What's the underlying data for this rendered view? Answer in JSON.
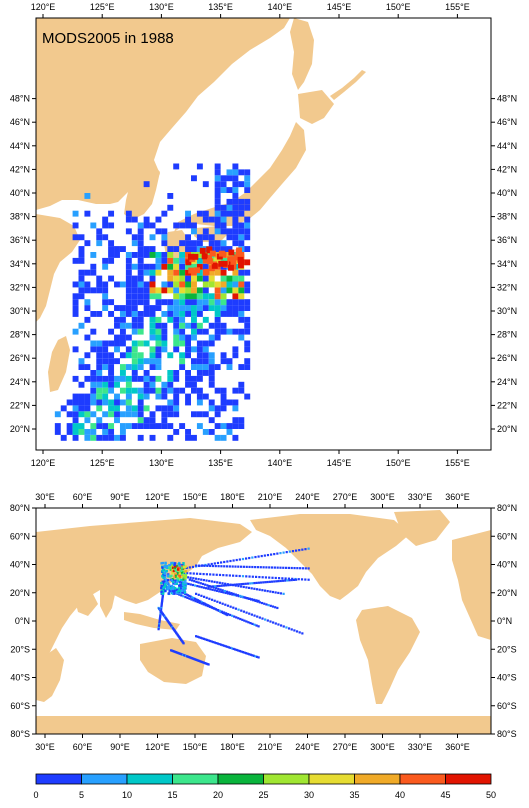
{
  "title": "MODS2005 in 1988",
  "colors": {
    "land": "#F2C98E",
    "ocean": "#FFFFFF",
    "frame": "#000000",
    "palette": [
      "#1E3CFF",
      "#28A0FF",
      "#00C8C8",
      "#3CE68C",
      "#0AB43C",
      "#A0E632",
      "#E6DC32",
      "#F0AA28",
      "#FA5A1E",
      "#E11400"
    ]
  },
  "top_map": {
    "lon_labels": [
      "120°E",
      "125°E",
      "130°E",
      "135°E",
      "140°E",
      "145°E",
      "150°E",
      "155°E"
    ],
    "lat_labels": [
      "20°N",
      "22°N",
      "24°N",
      "26°N",
      "28°N",
      "30°N",
      "32°N",
      "34°N",
      "36°N",
      "38°N",
      "40°N",
      "42°N",
      "44°N",
      "46°N",
      "48°N"
    ]
  },
  "bottom_map": {
    "lon_labels": [
      "30°E",
      "60°E",
      "90°E",
      "120°E",
      "150°E",
      "180°E",
      "210°E",
      "240°E",
      "270°E",
      "300°E",
      "330°E",
      "360°E"
    ],
    "lat_labels": [
      "80°S",
      "60°S",
      "40°S",
      "20°S",
      "0°N",
      "20°N",
      "40°N",
      "60°N",
      "80°N"
    ]
  },
  "colorbar": {
    "labels": [
      "0",
      "5",
      "10",
      "15",
      "20",
      "25",
      "30",
      "35",
      "40",
      "45",
      "50"
    ]
  }
}
